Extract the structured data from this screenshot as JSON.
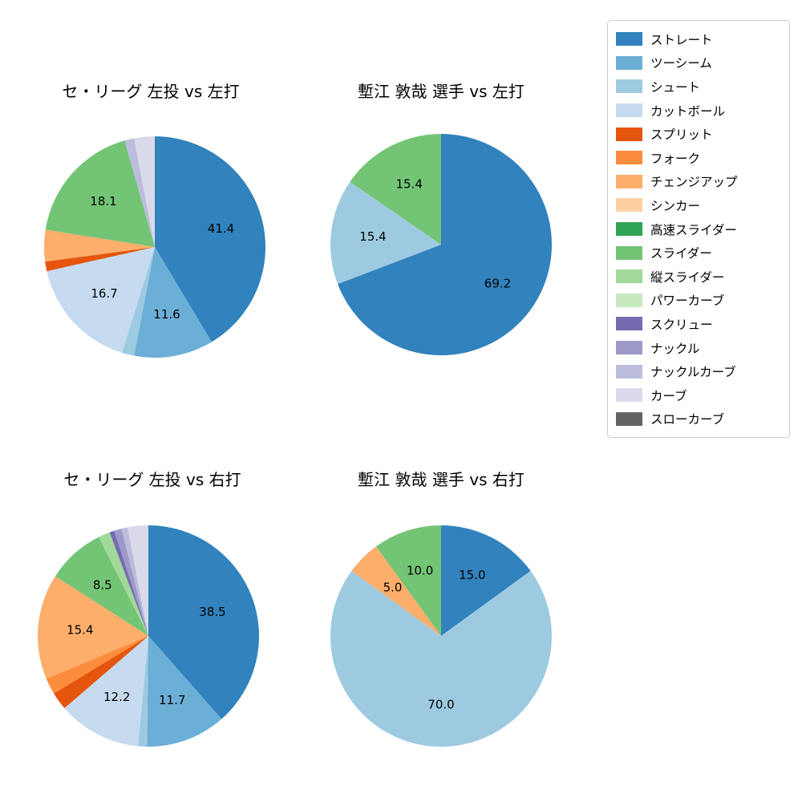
{
  "legend": {
    "items": [
      {
        "label": "ストレート",
        "color": "#3182bd"
      },
      {
        "label": "ツーシーム",
        "color": "#6baed6"
      },
      {
        "label": "シュート",
        "color": "#9ecae1"
      },
      {
        "label": "カットボール",
        "color": "#c6dbef"
      },
      {
        "label": "スプリット",
        "color": "#e6550d"
      },
      {
        "label": "フォーク",
        "color": "#fd8d3c"
      },
      {
        "label": "チェンジアップ",
        "color": "#fdae6b"
      },
      {
        "label": "シンカー",
        "color": "#fdd0a2"
      },
      {
        "label": "高速スライダー",
        "color": "#31a354"
      },
      {
        "label": "スライダー",
        "color": "#74c476"
      },
      {
        "label": "縦スライダー",
        "color": "#a1d99b"
      },
      {
        "label": "パワーカーブ",
        "color": "#c7e9c0"
      },
      {
        "label": "スクリュー",
        "color": "#756bb1"
      },
      {
        "label": "ナックル",
        "color": "#9e9ac8"
      },
      {
        "label": "ナックルカーブ",
        "color": "#bcbddc"
      },
      {
        "label": "カーブ",
        "color": "#dadaeb"
      },
      {
        "label": "スローカーブ",
        "color": "#636363"
      }
    ]
  },
  "chart_data": [
    {
      "type": "pie",
      "title": "セ・リーグ 左投 vs 左打",
      "start_angle_deg": -90,
      "direction": "clockwise",
      "slices": [
        {
          "label": "ストレート",
          "value": 41.4,
          "pct_label": "41.4"
        },
        {
          "label": "ツーシーム",
          "value": 11.6,
          "pct_label": "11.6"
        },
        {
          "label": "シュート",
          "value": 1.8,
          "pct_label": ""
        },
        {
          "label": "カットボール",
          "value": 16.7,
          "pct_label": "16.7"
        },
        {
          "label": "スプリット",
          "value": 1.4,
          "pct_label": ""
        },
        {
          "label": "チェンジアップ",
          "value": 4.6,
          "pct_label": ""
        },
        {
          "label": "スライダー",
          "value": 18.1,
          "pct_label": "18.1"
        },
        {
          "label": "ナックルカーブ",
          "value": 1.4,
          "pct_label": ""
        },
        {
          "label": "カーブ",
          "value": 3.0,
          "pct_label": ""
        }
      ]
    },
    {
      "type": "pie",
      "title": "塹江 敦哉 選手 vs 左打",
      "start_angle_deg": -90,
      "direction": "clockwise",
      "slices": [
        {
          "label": "ストレート",
          "value": 69.2,
          "pct_label": "69.2"
        },
        {
          "label": "シュート",
          "value": 15.4,
          "pct_label": "15.4"
        },
        {
          "label": "スライダー",
          "value": 15.4,
          "pct_label": "15.4"
        }
      ]
    },
    {
      "type": "pie",
      "title": "セ・リーグ 左投 vs 右打",
      "start_angle_deg": -90,
      "direction": "clockwise",
      "slices": [
        {
          "label": "ストレート",
          "value": 38.5,
          "pct_label": "38.5"
        },
        {
          "label": "ツーシーム",
          "value": 11.7,
          "pct_label": "11.7"
        },
        {
          "label": "シュート",
          "value": 1.3,
          "pct_label": ""
        },
        {
          "label": "カットボール",
          "value": 12.2,
          "pct_label": "12.2"
        },
        {
          "label": "スプリット",
          "value": 2.6,
          "pct_label": ""
        },
        {
          "label": "フォーク",
          "value": 2.4,
          "pct_label": ""
        },
        {
          "label": "チェンジアップ",
          "value": 15.4,
          "pct_label": "15.4"
        },
        {
          "label": "スライダー",
          "value": 8.5,
          "pct_label": "8.5"
        },
        {
          "label": "縦スライダー",
          "value": 1.7,
          "pct_label": ""
        },
        {
          "label": "スクリュー",
          "value": 0.7,
          "pct_label": ""
        },
        {
          "label": "ナックル",
          "value": 1.1,
          "pct_label": ""
        },
        {
          "label": "ナックルカーブ",
          "value": 0.9,
          "pct_label": ""
        },
        {
          "label": "カーブ",
          "value": 3.0,
          "pct_label": ""
        }
      ]
    },
    {
      "type": "pie",
      "title": "塹江 敦哉 選手 vs 右打",
      "start_angle_deg": -90,
      "direction": "clockwise",
      "slices": [
        {
          "label": "ストレート",
          "value": 15.0,
          "pct_label": "15.0"
        },
        {
          "label": "シュート",
          "value": 70.0,
          "pct_label": "70.0"
        },
        {
          "label": "チェンジアップ",
          "value": 5.0,
          "pct_label": "5.0"
        },
        {
          "label": "スライダー",
          "value": 10.0,
          "pct_label": "10.0"
        }
      ]
    }
  ]
}
